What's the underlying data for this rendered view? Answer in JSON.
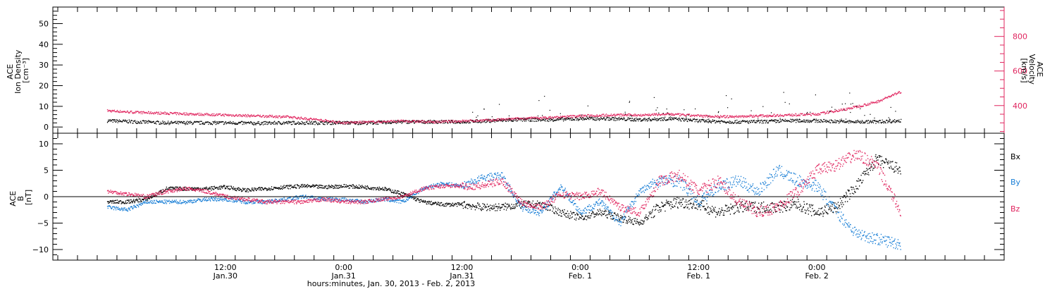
{
  "colors": {
    "axis": "#000000",
    "velocity": "#e0245e",
    "bx": "#000000",
    "by": "#1a7fd6",
    "bz": "#e0245e"
  },
  "chart_data": [
    {
      "type": "scatter",
      "panel": "plasma",
      "ylabel_lines": [
        "ACE",
        "Ion Density",
        "[cm⁻³]"
      ],
      "ylim": [
        -3,
        58
      ],
      "yticks": [
        0,
        10,
        20,
        30,
        40,
        50
      ],
      "ytick_labels": [
        "0",
        "10",
        "20",
        "30",
        "40",
        "50"
      ],
      "right_axis": {
        "label_lines": [
          "ACE",
          "Velocity",
          "[km/s]"
        ],
        "ylim": [
          240,
          970
        ],
        "ticks": [
          400,
          600,
          800
        ],
        "tick_labels": [
          "400",
          "600",
          "800"
        ],
        "color": "#e0245e"
      },
      "series": [
        {
          "name": "density",
          "color": "#000000",
          "x": [
            0,
            3,
            6,
            9,
            12,
            15,
            18,
            21,
            24,
            27,
            30,
            33,
            36,
            39,
            42,
            45,
            48,
            51,
            54,
            57,
            60,
            63,
            66,
            69,
            72,
            75,
            78,
            80.5
          ],
          "y": [
            3,
            2.5,
            2,
            2,
            2,
            1.8,
            2,
            2,
            2,
            2,
            2.5,
            2.5,
            2.5,
            3,
            3.5,
            3.5,
            4,
            4,
            3.5,
            4,
            3,
            2.5,
            2.5,
            3,
            3,
            2.5,
            2.5,
            3
          ]
        },
        {
          "name": "velocity",
          "color": "#e0245e",
          "x": [
            0,
            3,
            6,
            9,
            12,
            15,
            18,
            21,
            24,
            27,
            30,
            33,
            36,
            39,
            42,
            45,
            48,
            51,
            54,
            57,
            60,
            63,
            66,
            69,
            72,
            75,
            78,
            80.5
          ],
          "y": [
            370,
            360,
            355,
            350,
            345,
            340,
            335,
            320,
            300,
            305,
            310,
            305,
            310,
            315,
            325,
            330,
            340,
            345,
            345,
            350,
            340,
            335,
            340,
            345,
            350,
            380,
            420,
            480
          ]
        }
      ]
    },
    {
      "type": "scatter",
      "panel": "magnetic-field",
      "ylabel_lines": [
        "ACE",
        "B",
        "[nT]"
      ],
      "ylim": [
        -12,
        12
      ],
      "yticks": [
        -10,
        -5,
        0,
        5,
        10
      ],
      "ytick_labels": [
        "−10",
        "−5",
        "0",
        "5",
        "10"
      ],
      "legend": [
        "Bx",
        "By",
        "Bz"
      ],
      "series": [
        {
          "name": "Bx",
          "color": "#000000",
          "x": [
            0,
            2,
            4,
            6,
            8,
            10,
            12,
            14,
            16,
            18,
            20,
            22,
            24,
            26,
            28,
            30,
            32,
            34,
            36,
            38,
            40,
            42,
            44,
            46,
            48,
            50,
            52,
            54,
            56,
            58,
            60,
            62,
            64,
            66,
            68,
            70,
            72,
            74,
            76,
            78,
            80.5
          ],
          "y": [
            -1,
            -1,
            -0.5,
            1.5,
            1.5,
            1.5,
            1.8,
            1.2,
            1.5,
            1.8,
            2,
            1.8,
            2,
            1.8,
            1.5,
            0.5,
            -1,
            -1.5,
            -1.5,
            -2,
            -2,
            -1.5,
            -1.5,
            -3,
            -4,
            -3,
            -4,
            -5,
            -2,
            -1,
            -1.5,
            -3,
            -2,
            -2,
            -2,
            -1.5,
            -3,
            -2,
            2,
            7,
            5
          ]
        },
        {
          "name": "By",
          "color": "#1a7fd6",
          "x": [
            0,
            2,
            4,
            6,
            8,
            10,
            12,
            14,
            16,
            18,
            20,
            22,
            24,
            26,
            28,
            30,
            32,
            34,
            36,
            38,
            40,
            42,
            44,
            46,
            48,
            50,
            52,
            54,
            56,
            58,
            60,
            62,
            64,
            66,
            68,
            70,
            72,
            74,
            76,
            78,
            80.5
          ],
          "y": [
            -2,
            -2.5,
            -1,
            -1,
            -1,
            -0.5,
            -0.5,
            -1,
            -1,
            -0.5,
            0,
            -0.5,
            -0.5,
            -1,
            -0.5,
            -1,
            1.5,
            2.5,
            2,
            3.5,
            4,
            -2,
            -3,
            2,
            -3,
            -1,
            -5,
            1,
            3,
            3,
            -1,
            2,
            3,
            1,
            5,
            3,
            2,
            -3,
            -7,
            -8,
            -9
          ]
        },
        {
          "name": "Bz",
          "color": "#e0245e",
          "x": [
            0,
            2,
            4,
            6,
            8,
            10,
            12,
            14,
            16,
            18,
            20,
            22,
            24,
            26,
            28,
            30,
            32,
            34,
            36,
            38,
            40,
            42,
            44,
            46,
            48,
            50,
            52,
            54,
            56,
            58,
            60,
            62,
            64,
            66,
            68,
            70,
            72,
            74,
            76,
            78,
            80.5
          ],
          "y": [
            1,
            0.5,
            0,
            1,
            1.5,
            1,
            0,
            -0.5,
            -1,
            -1,
            -1,
            -0.5,
            -1,
            -1,
            -0.5,
            0,
            1.5,
            2,
            2,
            2,
            3,
            -1,
            -2,
            0.5,
            0,
            1,
            -2,
            -3,
            3,
            4,
            1,
            3,
            -1,
            -3,
            -2,
            1,
            5,
            6,
            8,
            6,
            -3
          ]
        }
      ]
    }
  ],
  "x_axis": {
    "range_hours": [
      -5.5,
      91
    ],
    "major_ticks": [
      12,
      24,
      36,
      48,
      60,
      72
    ],
    "tick_labels_top": [
      "12:00",
      "0:00",
      "12:00",
      "0:00",
      "12:00",
      "0:00"
    ],
    "tick_labels_bottom": [
      "Jan.30",
      "Jan.31",
      "Jan.31",
      "Feb. 1",
      "Feb. 1",
      "Feb. 2"
    ],
    "title": "hours:minutes, Jan. 30, 2013 - Feb.  2, 2013"
  }
}
